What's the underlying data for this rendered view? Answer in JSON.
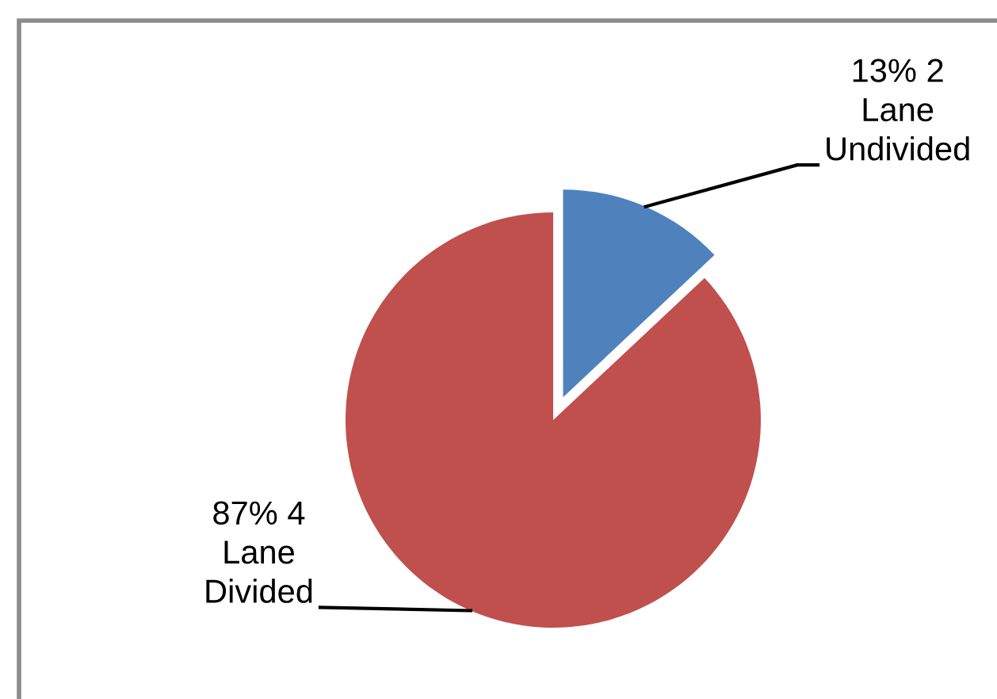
{
  "chart_data": {
    "type": "pie",
    "categories": [
      "2 Lane Undivided",
      "4 Lane Divided"
    ],
    "values": [
      13,
      87
    ],
    "colors": [
      "#4f81bd",
      "#c0504d"
    ],
    "value_labels": [
      "13%",
      "87%"
    ]
  }
}
